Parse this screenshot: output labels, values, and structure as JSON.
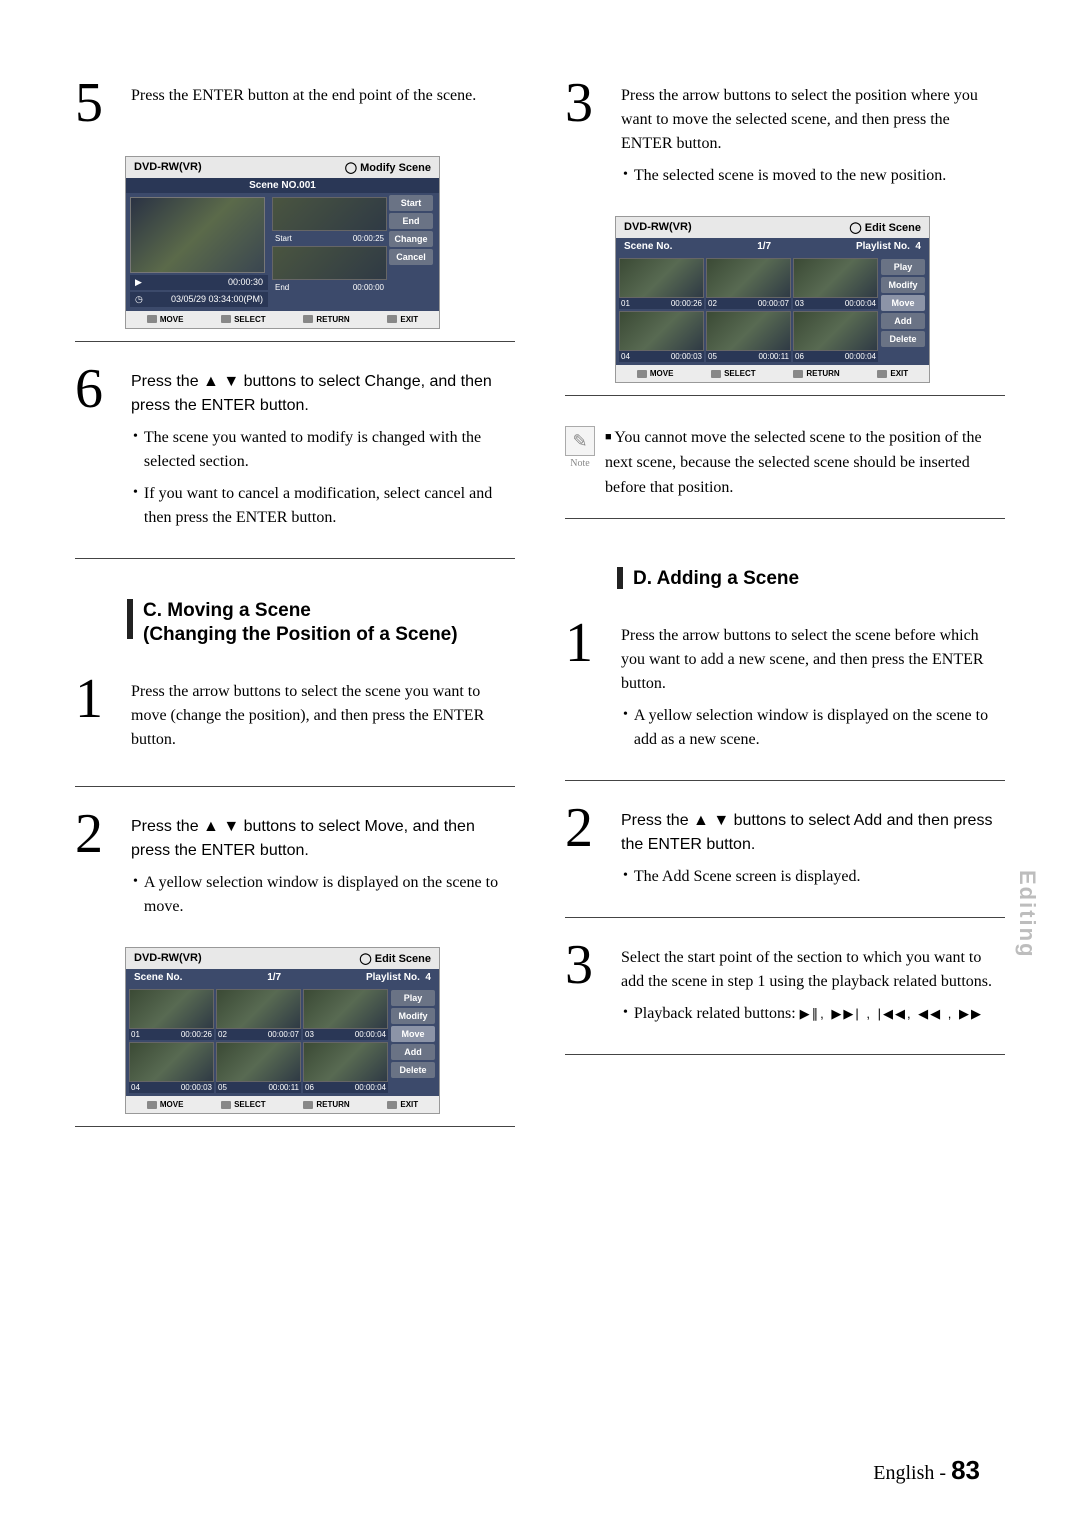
{
  "footer": {
    "lang": "English",
    "page": "83"
  },
  "side_tab": "Editing",
  "left": {
    "step5": {
      "text": "Press the ENTER button at the end point of the scene."
    },
    "modify_panel": {
      "header_left": "DVD-RW(VR)",
      "header_right": "Modify Scene",
      "scene_no": "Scene NO.001",
      "play_time": "00:00:30",
      "datetime": "03/05/29 03:34:00(PM)",
      "start_label": "Start",
      "start_time": "00:00:25",
      "end_label": "End",
      "end_time": "00:00:00",
      "btns": [
        "Start",
        "End",
        "Change",
        "Cancel"
      ],
      "footer": [
        "MOVE",
        "SELECT",
        "RETURN",
        "EXIT"
      ]
    },
    "step6": {
      "text": "Press the ▲ ▼ buttons to select Change, and then press the ENTER button.",
      "b1": "The scene you wanted to modify is changed with the selected section.",
      "b2": "If you want to cancel a modification, select cancel and then press the ENTER button."
    },
    "section_c": "C. Moving a Scene\n(Changing the Position of a Scene)",
    "c1": "Press the arrow buttons to select the scene you want to move (change the position), and then press the ENTER button.",
    "c2": {
      "text": "Press the ▲ ▼ buttons to select Move, and then press the ENTER button.",
      "b1": "A yellow selection window is displayed on the scene to move."
    },
    "edit_panel_c": {
      "header_left": "DVD-RW(VR)",
      "header_right": "Edit Scene",
      "scene_no_label": "Scene No.",
      "scene_no": "1/7",
      "playlist_label": "Playlist No.",
      "playlist_no": "4",
      "thumbs": [
        {
          "n": "01",
          "t": "00:00:26"
        },
        {
          "n": "02",
          "t": "00:00:07"
        },
        {
          "n": "03",
          "t": "00:00:04"
        },
        {
          "n": "04",
          "t": "00:00:03"
        },
        {
          "n": "05",
          "t": "00:00:11"
        },
        {
          "n": "06",
          "t": "00:00:04"
        }
      ],
      "btns": [
        "Play",
        "Modify",
        "Move",
        "Add",
        "Delete"
      ],
      "footer": [
        "MOVE",
        "SELECT",
        "RETURN",
        "EXIT"
      ]
    }
  },
  "right": {
    "step3_top": {
      "text": "Press the arrow buttons to select the position where you want to move the selected scene, and then press the ENTER button.",
      "b1": "The selected scene is moved to the new position."
    },
    "edit_panel_r": {
      "header_left": "DVD-RW(VR)",
      "header_right": "Edit Scene",
      "scene_no_label": "Scene No.",
      "scene_no": "1/7",
      "playlist_label": "Playlist No.",
      "playlist_no": "4",
      "thumbs": [
        {
          "n": "01",
          "t": "00:00:26"
        },
        {
          "n": "02",
          "t": "00:00:07"
        },
        {
          "n": "03",
          "t": "00:00:04"
        },
        {
          "n": "04",
          "t": "00:00:03"
        },
        {
          "n": "05",
          "t": "00:00:11"
        },
        {
          "n": "06",
          "t": "00:00:04"
        }
      ],
      "btns": [
        "Play",
        "Modify",
        "Move",
        "Add",
        "Delete"
      ],
      "footer": [
        "MOVE",
        "SELECT",
        "RETURN",
        "EXIT"
      ]
    },
    "note": "You cannot move the selected scene to the position of the next scene, because the selected scene should be inserted before that position.",
    "note_label": "Note",
    "section_d": "D. Adding a Scene",
    "d1": {
      "text": "Press the arrow buttons to select the scene before which you want to add a new scene, and then press the ENTER button.",
      "b1": "A yellow selection window is displayed on the scene to add as a new scene."
    },
    "d2": {
      "text": "Press the ▲ ▼ buttons to select Add and then press the ENTER button.",
      "b1": "The Add Scene screen is displayed."
    },
    "d3": {
      "text": "Select the start point of the section to which you want to add the scene in step 1 using the playback related buttons.",
      "b1_prefix": "Playback related buttons: ",
      "b1_icons": "▶∥, ▶▶| , |◀◀, ◀◀ , ▶▶"
    }
  }
}
